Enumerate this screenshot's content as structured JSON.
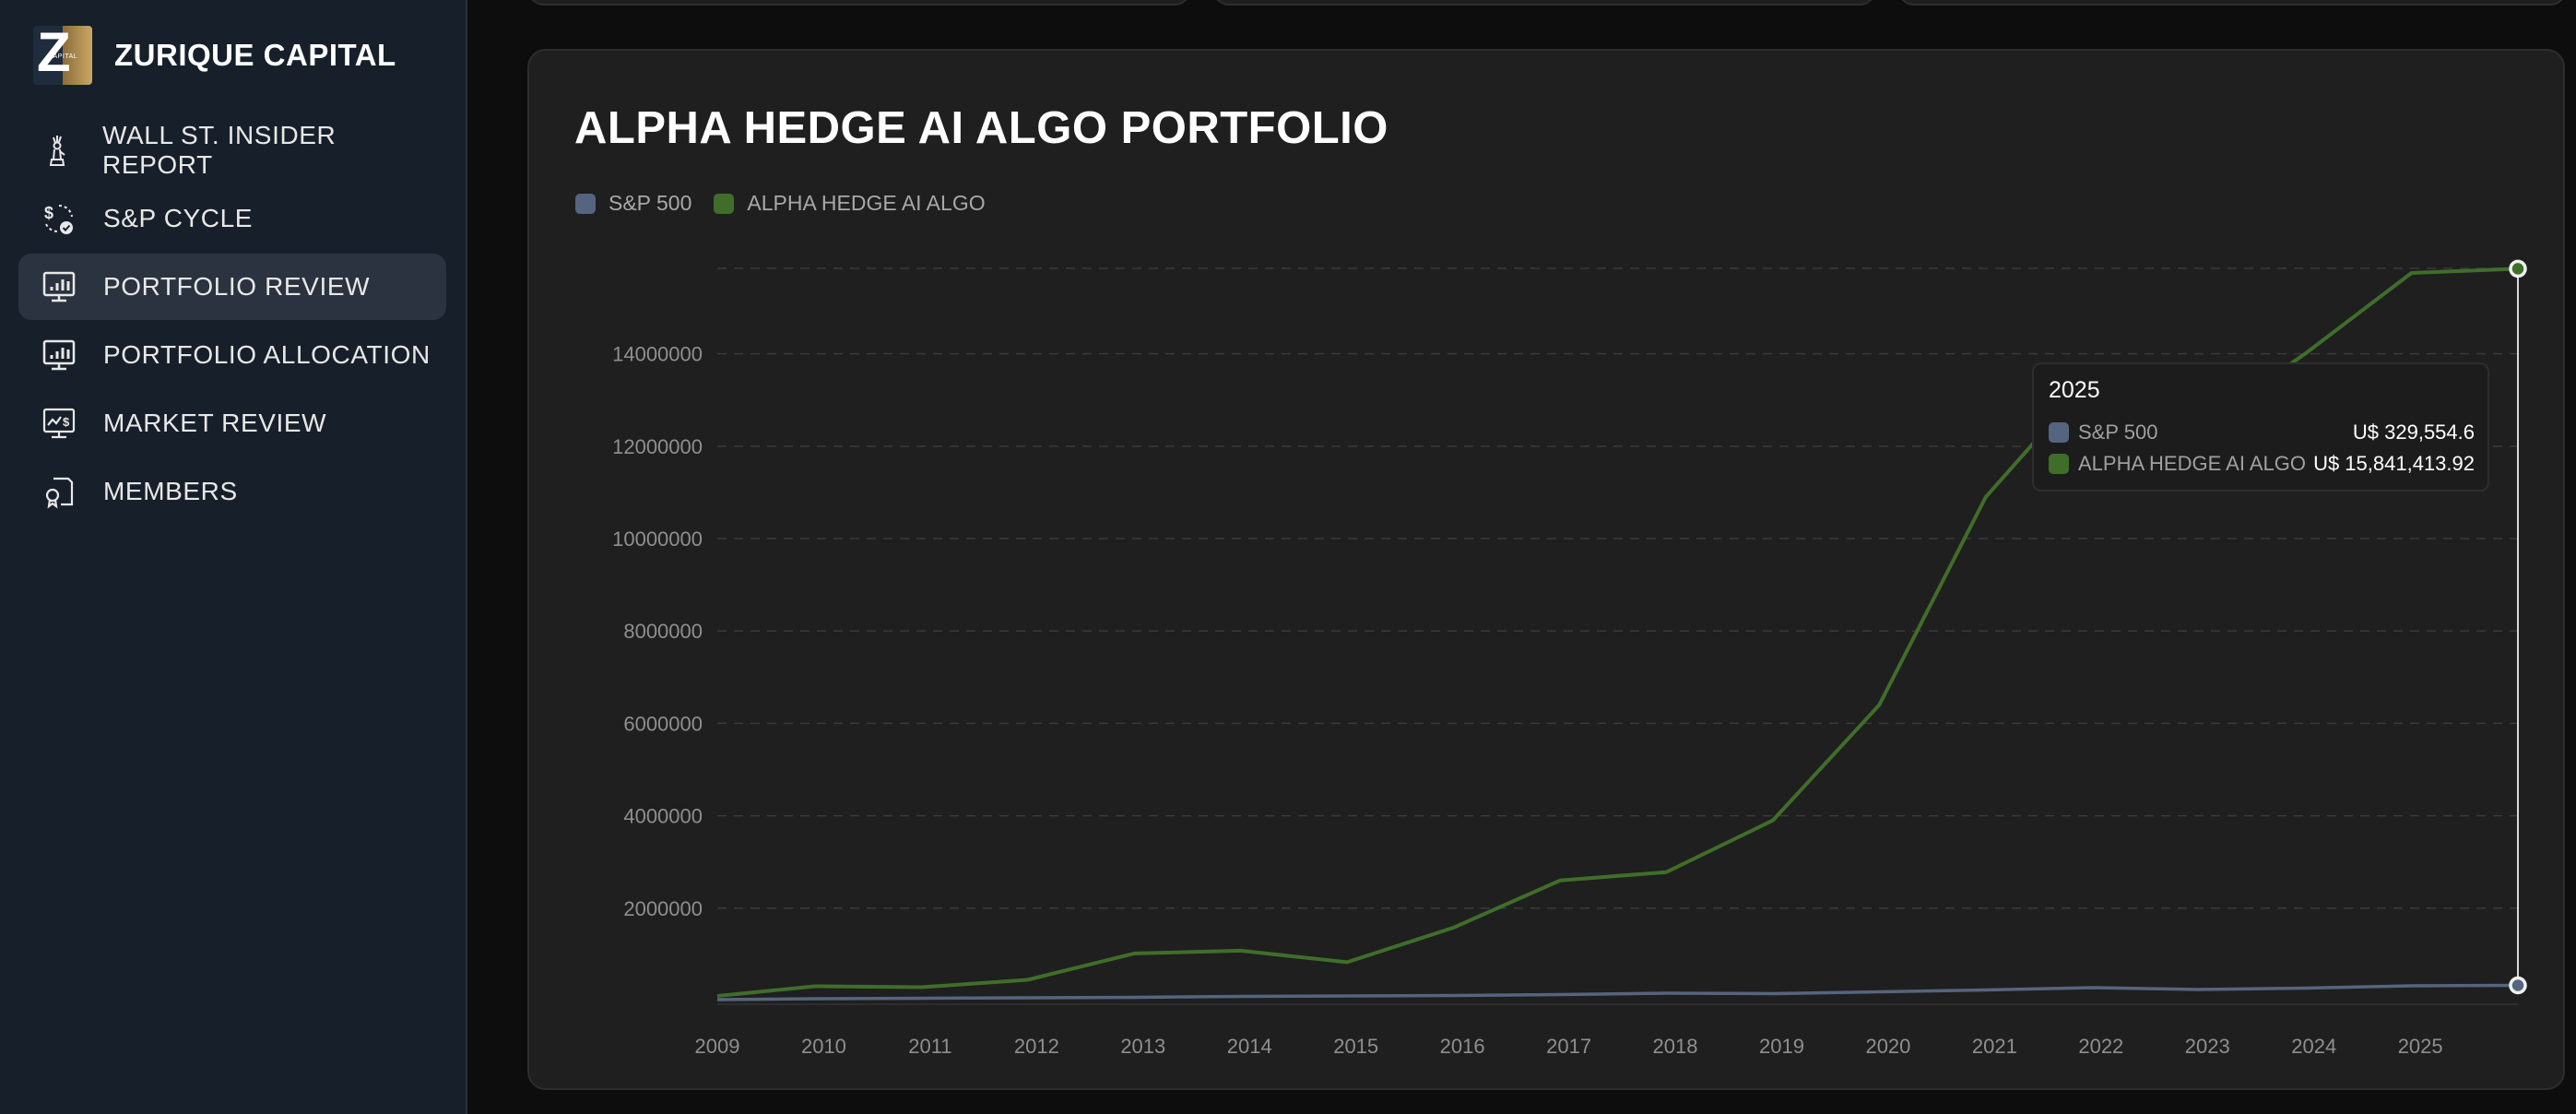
{
  "brand": {
    "name": "ZURIQUE CAPITAL",
    "logo_letter": "Z",
    "logo_sub": "CAPITAL"
  },
  "nav": {
    "items": [
      {
        "label": "WALL ST. INSIDER REPORT",
        "icon": "statue-of-liberty-icon",
        "active": false
      },
      {
        "label": "S&P CYCLE",
        "icon": "dollar-cycle-icon",
        "active": false
      },
      {
        "label": "PORTFOLIO REVIEW",
        "icon": "monitor-chart-icon",
        "active": true
      },
      {
        "label": "PORTFOLIO ALLOCATION",
        "icon": "monitor-chart-icon",
        "active": false
      },
      {
        "label": "MARKET REVIEW",
        "icon": "monitor-dollar-icon",
        "active": false
      },
      {
        "label": "MEMBERS",
        "icon": "member-badge-icon",
        "active": false
      }
    ]
  },
  "colors": {
    "sp500": "#55657f",
    "alpha": "#3f6e2a",
    "grid": "#3a3a3a"
  },
  "chart_data": {
    "type": "line",
    "title": "ALPHA HEDGE AI ALGO PORTFOLIO",
    "xlabel": "",
    "ylabel": "",
    "legend": [
      "S&P 500",
      "ALPHA HEDGE AI ALGO"
    ],
    "legend_position": "top-left",
    "grid": true,
    "y_ticks": [
      2000000,
      4000000,
      6000000,
      8000000,
      10000000,
      12000000,
      14000000
    ],
    "y_tick_labels": [
      "2000000",
      "4000000",
      "6000000",
      "8000000",
      "10000000",
      "12000000",
      "14000000"
    ],
    "ylim": [
      0,
      15850000
    ],
    "x_tick_labels": [
      "2009",
      "2010",
      "2011",
      "2012",
      "2013",
      "2014",
      "2015",
      "2016",
      "2017",
      "2018",
      "2019",
      "2020",
      "2021",
      "2022",
      "2023",
      "2024",
      "2025"
    ],
    "series": [
      {
        "name": "S&P 500",
        "color": "#55657f",
        "points": [
          [
            "2009-01",
            20000
          ],
          [
            "2009-12",
            40000
          ],
          [
            "2010-12",
            50000
          ],
          [
            "2011-12",
            60000
          ],
          [
            "2012-12",
            70000
          ],
          [
            "2013-12",
            90000
          ],
          [
            "2014-12",
            100000
          ],
          [
            "2015-12",
            110000
          ],
          [
            "2016-12",
            130000
          ],
          [
            "2017-12",
            160000
          ],
          [
            "2018-12",
            150000
          ],
          [
            "2019-12",
            190000
          ],
          [
            "2020-12",
            230000
          ],
          [
            "2021-12",
            280000
          ],
          [
            "2022-12",
            240000
          ],
          [
            "2023-12",
            270000
          ],
          [
            "2024-12",
            320000
          ],
          [
            "2025-12",
            329554.6
          ]
        ]
      },
      {
        "name": "ALPHA HEDGE AI ALGO",
        "color": "#3f6e2a",
        "points": [
          [
            "2009-01",
            100000
          ],
          [
            "2009-12",
            310000
          ],
          [
            "2010-12",
            290000
          ],
          [
            "2011-12",
            450000
          ],
          [
            "2012-12",
            1020000
          ],
          [
            "2013-12",
            1080000
          ],
          [
            "2014-12",
            830000
          ],
          [
            "2015-12",
            1580000
          ],
          [
            "2016-12",
            2600000
          ],
          [
            "2017-12",
            2780000
          ],
          [
            "2018-12",
            3900000
          ],
          [
            "2019-12",
            6400000
          ],
          [
            "2020-12",
            10900000
          ],
          [
            "2021-12",
            13500000
          ],
          [
            "2022-12",
            12400000
          ],
          [
            "2023-12",
            14000000
          ],
          [
            "2024-12",
            15750000
          ],
          [
            "2025-12",
            15841413.92
          ]
        ]
      }
    ]
  },
  "tooltip": {
    "title": "2025",
    "rows": [
      {
        "label": "S&P 500",
        "value": "U$ 329,554.6"
      },
      {
        "label": "ALPHA HEDGE AI ALGO",
        "value": "U$ 15,841,413.92"
      }
    ]
  }
}
